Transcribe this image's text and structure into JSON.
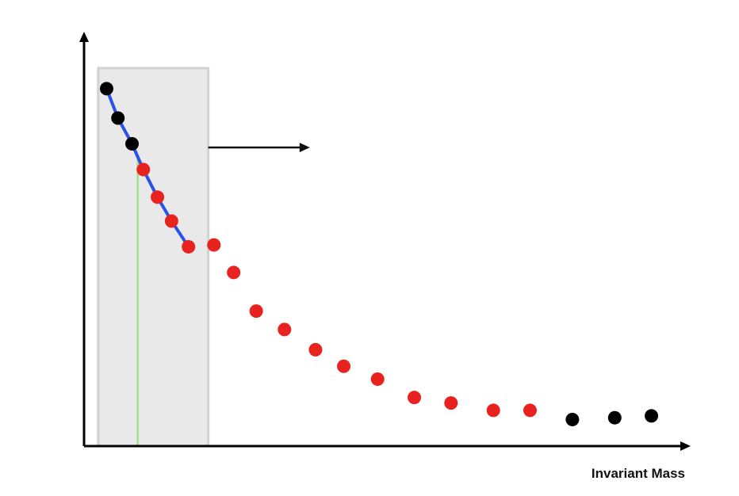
{
  "chart_data": {
    "type": "scatter",
    "title": "",
    "xlabel": "Invariant Mass",
    "ylabel": "",
    "xlim": [
      0,
      100
    ],
    "ylim": [
      0,
      100
    ],
    "grid": false,
    "series": [
      {
        "name": "sideband-low",
        "color": "#000000",
        "points": [
          [
            4,
            97
          ],
          [
            6,
            89
          ],
          [
            8.5,
            82
          ]
        ]
      },
      {
        "name": "signal-region",
        "color": "#e8231f",
        "points": [
          [
            10.5,
            75
          ],
          [
            13,
            67.5
          ],
          [
            15.5,
            61
          ],
          [
            18.5,
            54
          ],
          [
            23,
            54.5
          ],
          [
            26.5,
            47
          ],
          [
            30.5,
            36.5
          ],
          [
            35.5,
            31.5
          ],
          [
            41,
            26
          ],
          [
            46,
            21.5
          ],
          [
            52,
            18
          ],
          [
            58.5,
            13
          ],
          [
            65,
            11.5
          ],
          [
            72.5,
            9.5
          ],
          [
            79,
            9.5
          ]
        ]
      },
      {
        "name": "sideband-high",
        "color": "#000000",
        "points": [
          [
            86.5,
            7
          ],
          [
            94,
            7.5
          ],
          [
            100.5,
            8
          ]
        ]
      }
    ],
    "fit_line": {
      "color": "#2a52e8",
      "points": [
        [
          4,
          97
        ],
        [
          6,
          89
        ],
        [
          8.5,
          82
        ],
        [
          10.5,
          75
        ],
        [
          13,
          67.5
        ],
        [
          15.5,
          61
        ],
        [
          18.5,
          54
        ]
      ]
    },
    "marker_line": {
      "color": "#a6dc8f",
      "x": 9.5,
      "y_top": 79
    },
    "shaded_region": {
      "color": "#e9e9e9",
      "border": "#d2d2d2",
      "x_from": 2.5,
      "x_to": 22,
      "y_top": 100
    },
    "annotation_arrow": {
      "color": "#111111",
      "x_from": 22,
      "x_to": 40,
      "y": 81
    }
  }
}
